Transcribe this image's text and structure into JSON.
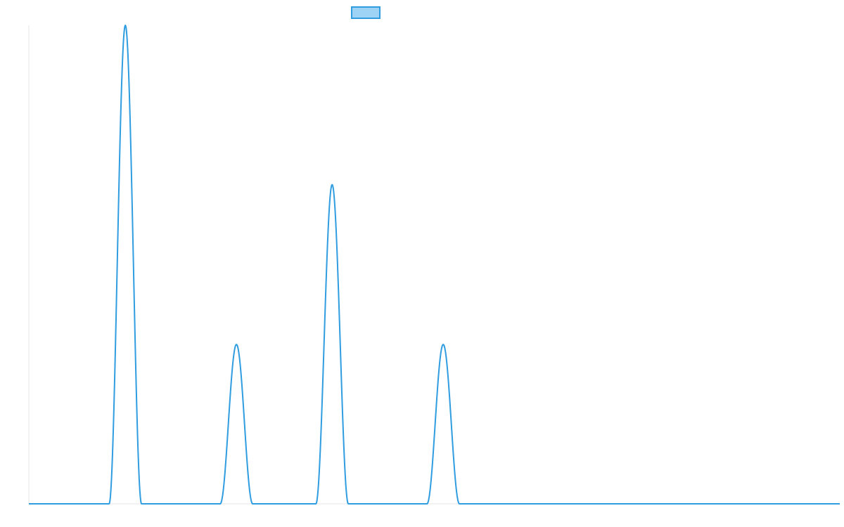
{
  "chart_data": {
    "type": "line",
    "title": "",
    "xlabel": "",
    "ylabel": "",
    "legend": {
      "placement": "top-center",
      "entries": [
        {
          "label": "",
          "color": "#2f9de0",
          "fill": "#9ed3f5"
        }
      ]
    },
    "grid": false,
    "xlim": [
      0,
      1000
    ],
    "ylim": [
      0,
      100
    ],
    "series": [
      {
        "color": "#2f9de0",
        "peaks": [
          {
            "center": 119,
            "height": 100,
            "half_width": 20
          },
          {
            "center": 256,
            "height": 33.3,
            "half_width": 20
          },
          {
            "center": 374,
            "height": 66.7,
            "half_width": 20
          },
          {
            "center": 511,
            "height": 33.3,
            "half_width": 20
          }
        ]
      }
    ]
  }
}
